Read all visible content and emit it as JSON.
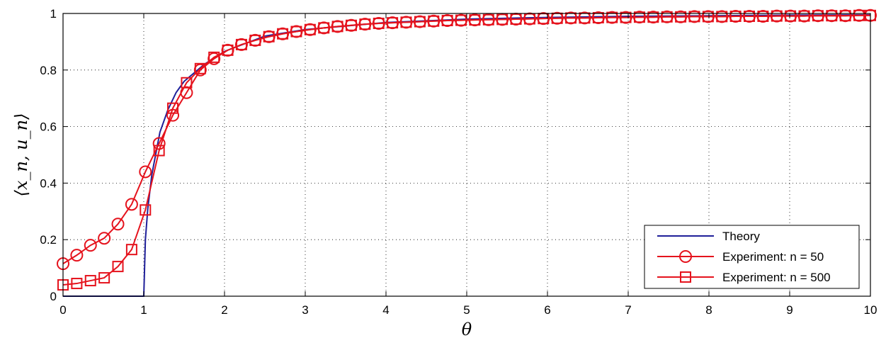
{
  "chart_data": {
    "type": "line",
    "xlabel": "θ",
    "ylabel": "⟨x_n, u_n⟩",
    "xlim": [
      0,
      10
    ],
    "ylim": [
      0,
      1
    ],
    "x_ticks": [
      "0",
      "1",
      "2",
      "3",
      "4",
      "5",
      "6",
      "7",
      "8",
      "9",
      "10"
    ],
    "y_ticks": [
      "0",
      "0.2",
      "0.4",
      "0.6",
      "0.8",
      "1"
    ],
    "grid": true,
    "legend_position": "bottom-right",
    "series": [
      {
        "name": "Theory",
        "color": "#1f1f99",
        "marker": "none",
        "kind": "theory",
        "x": [
          0,
          1,
          1.02,
          1.05,
          1.1,
          1.2,
          1.3,
          1.4,
          1.5,
          1.75,
          2,
          2.5,
          3,
          4,
          5,
          6,
          7,
          8,
          9,
          10
        ],
        "y": [
          0,
          0,
          0.2,
          0.31,
          0.43,
          0.58,
          0.66,
          0.72,
          0.76,
          0.82,
          0.866,
          0.92,
          0.943,
          0.968,
          0.98,
          0.986,
          0.99,
          0.992,
          0.994,
          0.995
        ]
      },
      {
        "name": "Experiment: n = 50",
        "color": "#e5131d",
        "marker": "circle",
        "x": [
          0,
          0.17,
          0.34,
          0.51,
          0.68,
          0.85,
          1.02,
          1.19,
          1.36,
          1.53,
          1.7,
          1.87,
          2.04,
          2.21,
          2.38,
          2.55,
          2.72,
          2.89,
          3.06,
          3.23,
          3.4,
          3.57,
          3.74,
          3.91,
          4.08,
          4.25,
          4.42,
          4.59,
          4.76,
          4.93,
          5.1,
          5.27,
          5.44,
          5.61,
          5.78,
          5.95,
          6.12,
          6.29,
          6.46,
          6.63,
          6.8,
          6.97,
          7.14,
          7.31,
          7.48,
          7.65,
          7.82,
          7.99,
          8.16,
          8.33,
          8.5,
          8.67,
          8.84,
          9.01,
          9.18,
          9.35,
          9.52,
          9.69,
          9.86,
          10
        ],
        "y": [
          0.115,
          0.145,
          0.18,
          0.205,
          0.255,
          0.325,
          0.44,
          0.54,
          0.64,
          0.72,
          0.8,
          0.84,
          0.87,
          0.89,
          0.905,
          0.918,
          0.928,
          0.936,
          0.943,
          0.949,
          0.954,
          0.958,
          0.962,
          0.965,
          0.967,
          0.969,
          0.971,
          0.973,
          0.975,
          0.976,
          0.977,
          0.978,
          0.979,
          0.98,
          0.981,
          0.982,
          0.983,
          0.984,
          0.984,
          0.985,
          0.986,
          0.986,
          0.987,
          0.987,
          0.988,
          0.988,
          0.989,
          0.989,
          0.989,
          0.99,
          0.99,
          0.99,
          0.991,
          0.991,
          0.991,
          0.992,
          0.992,
          0.992,
          0.993,
          0.993
        ]
      },
      {
        "name": "Experiment: n = 500",
        "color": "#e5131d",
        "marker": "square",
        "x": [
          0,
          0.17,
          0.34,
          0.51,
          0.68,
          0.85,
          1.02,
          1.19,
          1.36,
          1.53,
          1.7,
          1.87,
          2.04,
          2.21,
          2.38,
          2.55,
          2.72,
          2.89,
          3.06,
          3.23,
          3.4,
          3.57,
          3.74,
          3.91,
          4.08,
          4.25,
          4.42,
          4.59,
          4.76,
          4.93,
          5.1,
          5.27,
          5.44,
          5.61,
          5.78,
          5.95,
          6.12,
          6.29,
          6.46,
          6.63,
          6.8,
          6.97,
          7.14,
          7.31,
          7.48,
          7.65,
          7.82,
          7.99,
          8.16,
          8.33,
          8.5,
          8.67,
          8.84,
          9.01,
          9.18,
          9.35,
          9.52,
          9.69,
          9.86,
          10
        ],
        "y": [
          0.04,
          0.045,
          0.055,
          0.065,
          0.105,
          0.165,
          0.305,
          0.515,
          0.665,
          0.755,
          0.805,
          0.845,
          0.87,
          0.89,
          0.905,
          0.918,
          0.928,
          0.936,
          0.943,
          0.949,
          0.954,
          0.958,
          0.962,
          0.965,
          0.967,
          0.969,
          0.971,
          0.973,
          0.975,
          0.976,
          0.977,
          0.978,
          0.979,
          0.98,
          0.981,
          0.982,
          0.983,
          0.984,
          0.984,
          0.985,
          0.986,
          0.986,
          0.987,
          0.987,
          0.988,
          0.988,
          0.989,
          0.989,
          0.989,
          0.99,
          0.99,
          0.99,
          0.991,
          0.991,
          0.991,
          0.992,
          0.992,
          0.992,
          0.993,
          0.993
        ]
      }
    ]
  }
}
